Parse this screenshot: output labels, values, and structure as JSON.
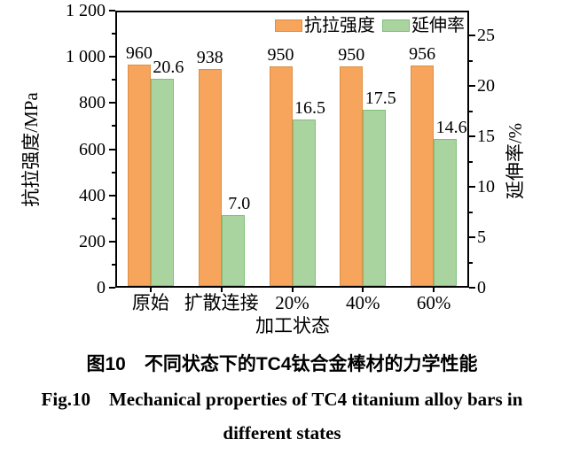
{
  "colors": {
    "tensile_fill": "#F7A55D",
    "tensile_border": "#DB8F41",
    "elongation_fill": "#A9D49F",
    "elongation_border": "#7FBE79",
    "axis": "#000000"
  },
  "chart_data": {
    "type": "bar",
    "categories": [
      "原始",
      "扩散连接",
      "20%",
      "40%",
      "60%"
    ],
    "series": [
      {
        "name": "抗拉强度",
        "axis": "left",
        "values": [
          960,
          938,
          950,
          950,
          956
        ],
        "labels": [
          "960",
          "938",
          "950",
          "950",
          "956"
        ]
      },
      {
        "name": "延伸率",
        "axis": "right",
        "values": [
          20.6,
          7.0,
          16.5,
          17.5,
          14.6
        ],
        "labels": [
          "20.6",
          "7.0",
          "16.5",
          "17.5",
          "14.6"
        ]
      }
    ],
    "left_axis": {
      "label": "抗拉强度/MPa",
      "min": 0,
      "max": 1200,
      "major_ticks": [
        0,
        200,
        400,
        600,
        800,
        1000,
        1200
      ],
      "tick_labels": [
        "0",
        "200",
        "400",
        "600",
        "800",
        "1 000",
        "1 200"
      ],
      "minor_step": 100
    },
    "right_axis": {
      "label": "延伸率/%",
      "min": 0,
      "max": 27.5,
      "major_ticks": [
        0,
        5,
        10,
        15,
        20,
        25
      ],
      "tick_labels": [
        "0",
        "5",
        "10",
        "15",
        "20",
        "25"
      ],
      "minor_step": 2.5
    },
    "xlabel": "加工状态",
    "legend": [
      "抗拉强度",
      "延伸率"
    ],
    "legend_position": "top-right-inside",
    "grid": false
  },
  "caption": {
    "zh": "图10　不同状态下的TC4钛合金棒材的力学性能",
    "en_line1": "Fig.10　Mechanical properties of TC4 titanium alloy bars in",
    "en_line2": "different states"
  }
}
